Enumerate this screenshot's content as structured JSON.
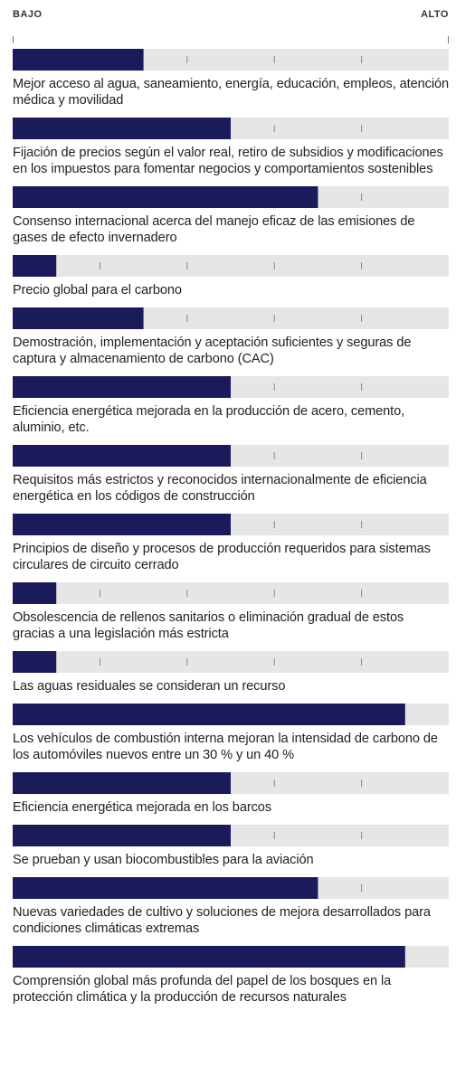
{
  "chart_data": {
    "type": "bar",
    "orientation": "horizontal",
    "scale_labels": [
      "BAJO",
      "ALTO"
    ],
    "categories": [
      "Mejor acceso al agua, saneamiento, energía, educación, empleos, atención médica y movilidad",
      "Fijación de precios según el valor real, retiro de subsidios y modificaciones en los impuestos para fomentar negocios y comportamientos sostenibles",
      "Consenso internacional acerca del manejo eficaz de las emisiones de gases de efecto invernadero",
      "Precio global para el carbono",
      "Demostración, implementación y aceptación suficientes y seguras de captura y almacenamiento de carbono (CAC)",
      "Eficiencia energética mejorada en la producción de acero, cemento, aluminio, etc.",
      "Requisitos más estrictos y reconocidos internacionalmente de eficiencia energética en los códigos de construcción",
      "Principios de diseño y procesos de producción requeridos para sistemas circulares de circuito cerrado",
      "Obsolescencia de rellenos sanitarios o eliminación gradual de estos gracias a una legislación más estricta",
      "Las aguas residuales se consideran un recurso",
      "Los vehículos de combustión interna mejoran la intensidad de carbono de los automóviles nuevos entre un 30 % y un 40 %",
      "Eficiencia energética mejorada en los barcos",
      "Se prueban y usan biocombustibles para la aviación",
      "Nuevas variedades de cultivo y soluciones de mejora desarrollados para condiciones climáticas extremas",
      "Comprensión global más profunda del papel de los bosques en la protección climática y la producción de recursos naturales"
    ],
    "values": [
      1.5,
      2.5,
      3.5,
      0.5,
      1.5,
      2.5,
      2.5,
      2.5,
      0.5,
      0.5,
      4.5,
      2.5,
      2.5,
      3.5,
      4.5
    ],
    "color": "#1b1b5c",
    "track_color": "#e6e6e6",
    "xlim": [
      0,
      5
    ],
    "xticks": [
      0,
      1,
      2,
      3,
      4,
      5
    ]
  }
}
